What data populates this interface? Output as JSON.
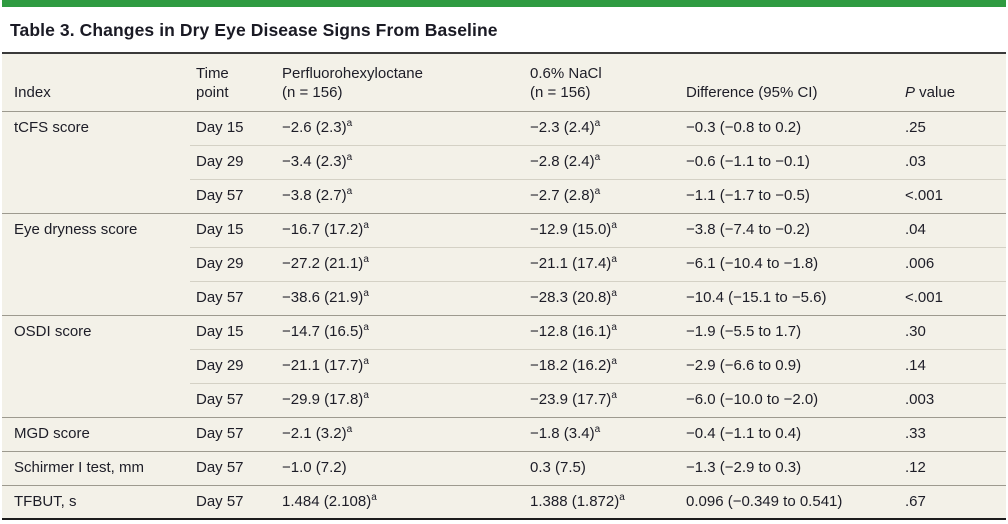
{
  "colors": {
    "accent_green": "#2f9b41",
    "table_background": "#f3f1e8",
    "top_rule": "#3a3a3a",
    "bottom_rule": "#1c1c1c",
    "section_divider": "#9d9a8f",
    "row_divider": "#d4d1c5",
    "text": "#1d1d27"
  },
  "title": "Table 3. Changes in Dry Eye Disease Signs From Baseline",
  "table": {
    "header": [
      {
        "id": "index",
        "lines": [
          "Index"
        ]
      },
      {
        "id": "time-point",
        "lines": [
          "Time",
          "point"
        ]
      },
      {
        "id": "pfho",
        "lines": [
          "Perfluorohexyloctane",
          "(n = 156)"
        ]
      },
      {
        "id": "nacl",
        "lines": [
          "0.6% NaCl",
          "(n = 156)"
        ]
      },
      {
        "id": "difference",
        "lines": [
          "Difference (95% CI)"
        ]
      },
      {
        "id": "p-value",
        "lines": [
          "P value"
        ],
        "italic_first_word": true
      }
    ],
    "footnote_marker": "a",
    "sections": [
      {
        "index": "tCFS score",
        "rows": [
          {
            "time": "Day 15",
            "pfho": "−2.6 (2.3)",
            "pfho_sup": "a",
            "nacl": "−2.3 (2.4)",
            "nacl_sup": "a",
            "diff": "−0.3 (−0.8 to 0.2)",
            "p": ".25"
          },
          {
            "time": "Day 29",
            "pfho": "−3.4 (2.3)",
            "pfho_sup": "a",
            "nacl": "−2.8 (2.4)",
            "nacl_sup": "a",
            "diff": "−0.6 (−1.1 to −0.1)",
            "p": ".03"
          },
          {
            "time": "Day 57",
            "pfho": "−3.8 (2.7)",
            "pfho_sup": "a",
            "nacl": "−2.7 (2.8)",
            "nacl_sup": "a",
            "diff": "−1.1 (−1.7 to −0.5)",
            "p": "<.001"
          }
        ]
      },
      {
        "index": "Eye dryness score",
        "rows": [
          {
            "time": "Day 15",
            "pfho": "−16.7 (17.2)",
            "pfho_sup": "a",
            "nacl": "−12.9 (15.0)",
            "nacl_sup": "a",
            "diff": "−3.8 (−7.4 to −0.2)",
            "p": ".04"
          },
          {
            "time": "Day 29",
            "pfho": "−27.2 (21.1)",
            "pfho_sup": "a",
            "nacl": "−21.1 (17.4)",
            "nacl_sup": "a",
            "diff": "−6.1 (−10.4 to −1.8)",
            "p": ".006"
          },
          {
            "time": "Day 57",
            "pfho": "−38.6 (21.9)",
            "pfho_sup": "a",
            "nacl": "−28.3 (20.8)",
            "nacl_sup": "a",
            "diff": "−10.4 (−15.1 to −5.6)",
            "p": "<.001"
          }
        ]
      },
      {
        "index": "OSDI score",
        "rows": [
          {
            "time": "Day 15",
            "pfho": "−14.7 (16.5)",
            "pfho_sup": "a",
            "nacl": "−12.8 (16.1)",
            "nacl_sup": "a",
            "diff": "−1.9 (−5.5 to 1.7)",
            "p": ".30"
          },
          {
            "time": "Day 29",
            "pfho": "−21.1 (17.7)",
            "pfho_sup": "a",
            "nacl": "−18.2 (16.2)",
            "nacl_sup": "a",
            "diff": "−2.9 (−6.6 to 0.9)",
            "p": ".14"
          },
          {
            "time": "Day 57",
            "pfho": "−29.9 (17.8)",
            "pfho_sup": "a",
            "nacl": "−23.9 (17.7)",
            "nacl_sup": "a",
            "diff": "−6.0 (−10.0 to −2.0)",
            "p": ".003"
          }
        ]
      },
      {
        "index": "MGD score",
        "rows": [
          {
            "time": "Day 57",
            "pfho": "−2.1 (3.2)",
            "pfho_sup": "a",
            "nacl": "−1.8 (3.4)",
            "nacl_sup": "a",
            "diff": "−0.4 (−1.1 to 0.4)",
            "p": ".33"
          }
        ]
      },
      {
        "index": "Schirmer I test, mm",
        "rows": [
          {
            "time": "Day 57",
            "pfho": "−1.0 (7.2)",
            "pfho_sup": "",
            "nacl": "0.3 (7.5)",
            "nacl_sup": "",
            "diff": "−1.3 (−2.9 to 0.3)",
            "p": ".12"
          }
        ]
      },
      {
        "index": "TFBUT, s",
        "rows": [
          {
            "time": "Day 57",
            "pfho": "1.484 (2.108)",
            "pfho_sup": "a",
            "nacl": "1.388 (1.872)",
            "nacl_sup": "a",
            "diff": "0.096 (−0.349 to 0.541)",
            "p": ".67"
          }
        ]
      }
    ]
  }
}
